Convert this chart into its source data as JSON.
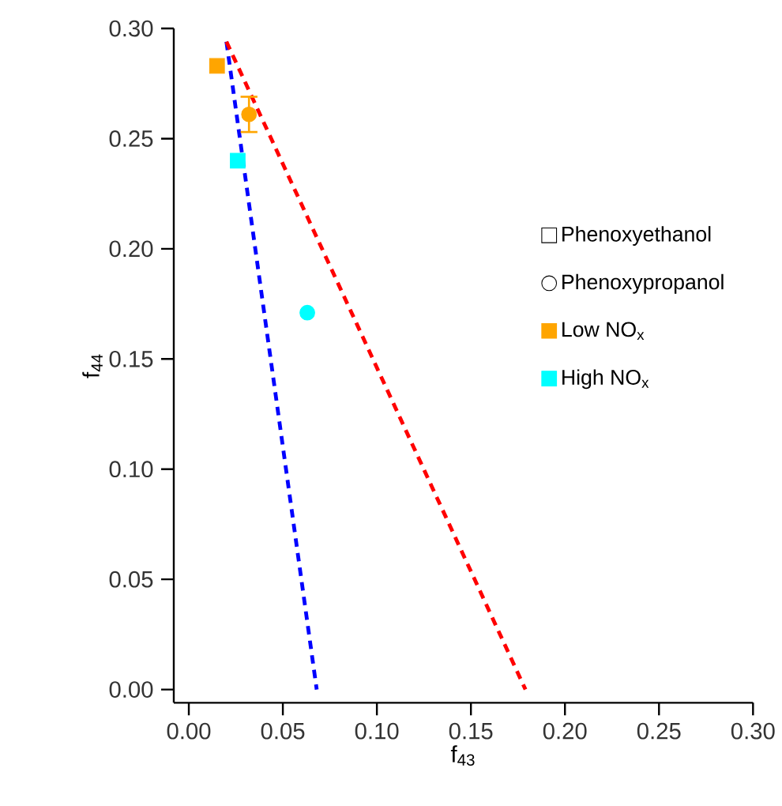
{
  "chart_data": {
    "type": "scatter",
    "xlabel": "f$_{43}$",
    "ylabel": "f$_{44}$",
    "xlim": [
      -0.008,
      0.3
    ],
    "ylim": [
      -0.006,
      0.3
    ],
    "xticks": [
      {
        "value": 0,
        "label": "0.00"
      },
      0.05,
      {
        "value": 0.1,
        "label": "0.10"
      },
      0.15,
      {
        "value": 0.2,
        "label": "0.20"
      },
      0.25,
      {
        "value": 0.3,
        "label": "0.30"
      }
    ],
    "yticks": [
      {
        "value": 0,
        "label": "0.00"
      },
      0.05,
      {
        "value": 0.1,
        "label": "0.10"
      },
      0.15,
      {
        "value": 0.2,
        "label": "0.20"
      },
      0.25,
      {
        "value": 0.3,
        "label": "0.30"
      }
    ],
    "legend": "right",
    "grid": false,
    "series": [
      {
        "type": "line",
        "color": "#0000ff",
        "line_style": "dashed",
        "x": [
          0.02,
          0.068
        ],
        "values": [
          0.294,
          0.0
        ]
      },
      {
        "type": "line",
        "color": "#ff0000",
        "line_style": "dashed",
        "x": [
          0.02,
          0.179
        ],
        "values": [
          0.294,
          0.0
        ]
      },
      {
        "name": "Phenoxyethanol",
        "marker": "square",
        "color": "#000000"
      },
      {
        "name": "Phenoxypropanol",
        "marker": "circle",
        "color": "#000000"
      },
      {
        "name": "Low NO$_{x}$",
        "marker": "square",
        "color": "#ffa500",
        "x": [
          0.015
        ],
        "values": [
          0.283
        ]
      },
      {
        "name": "High NO$_{x}$",
        "marker": "square",
        "color": "#00ffff",
        "x": [
          0.026
        ],
        "values": [
          0.24
        ]
      },
      {
        "marker": "circle",
        "color": "#ffa500",
        "x": [
          0.032
        ],
        "values": [
          0.261
        ],
        "errors": [
          0.008
        ]
      },
      {
        "marker": "circle",
        "color": "#00ffff",
        "x": [
          0.063
        ],
        "values": [
          0.171
        ]
      }
    ]
  }
}
